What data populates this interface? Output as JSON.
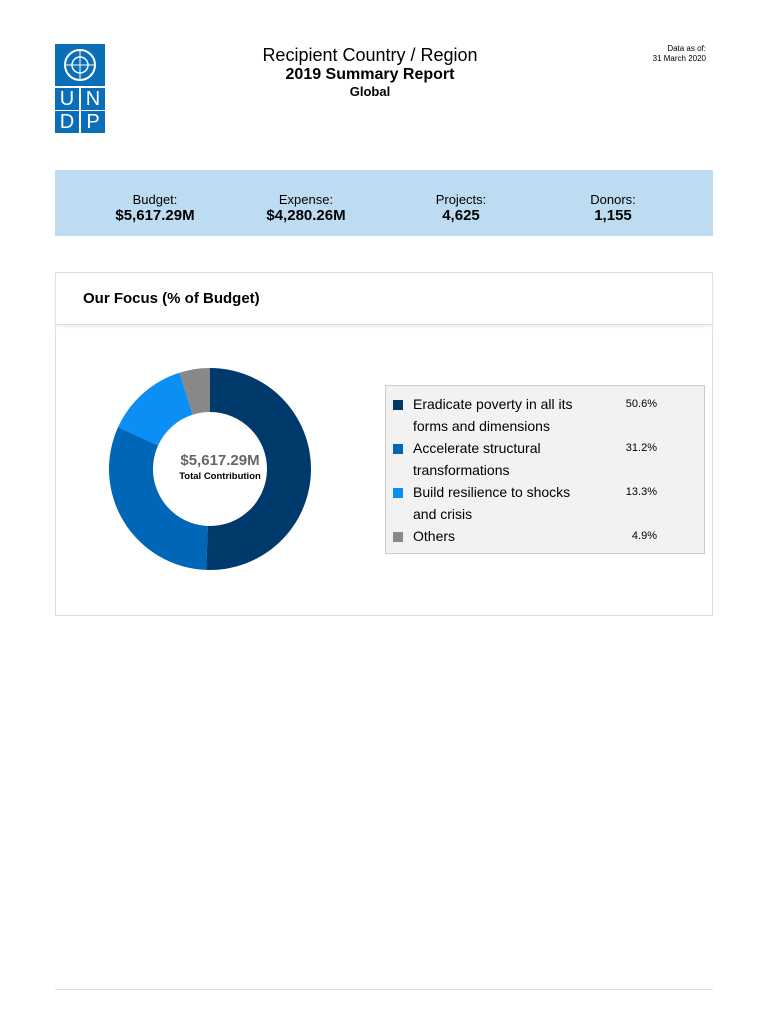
{
  "header": {
    "logo": [
      "U",
      "N",
      "D",
      "P"
    ],
    "title": "Recipient Country / Region",
    "subtitle": "2019 Summary Report",
    "scope": "Global",
    "data_as_of_label": "Data as of:",
    "data_as_of": "31 March 2020"
  },
  "summary": [
    {
      "label": "Budget:",
      "value": "$5,617.29M"
    },
    {
      "label": "Expense:",
      "value": "$4,280.26M"
    },
    {
      "label": "Projects:",
      "value": "4,625"
    },
    {
      "label": "Donors:",
      "value": "1,155"
    }
  ],
  "chart_data": {
    "type": "pie",
    "title": "Our Focus (% of Budget)",
    "center_value": "$5,617.29M",
    "center_label": "Total Contribution",
    "categories": [
      "Eradicate poverty in all its forms and dimensions",
      "Accelerate structural transformations",
      "Build resilience to shocks and crisis",
      "Others"
    ],
    "values": [
      50.6,
      31.2,
      13.3,
      4.9
    ],
    "value_labels": [
      "50.6%",
      "31.2%",
      "13.3%",
      "4.9%"
    ],
    "colors": [
      "#003a6c",
      "#0066b8",
      "#0b8ff4",
      "#888888"
    ]
  }
}
